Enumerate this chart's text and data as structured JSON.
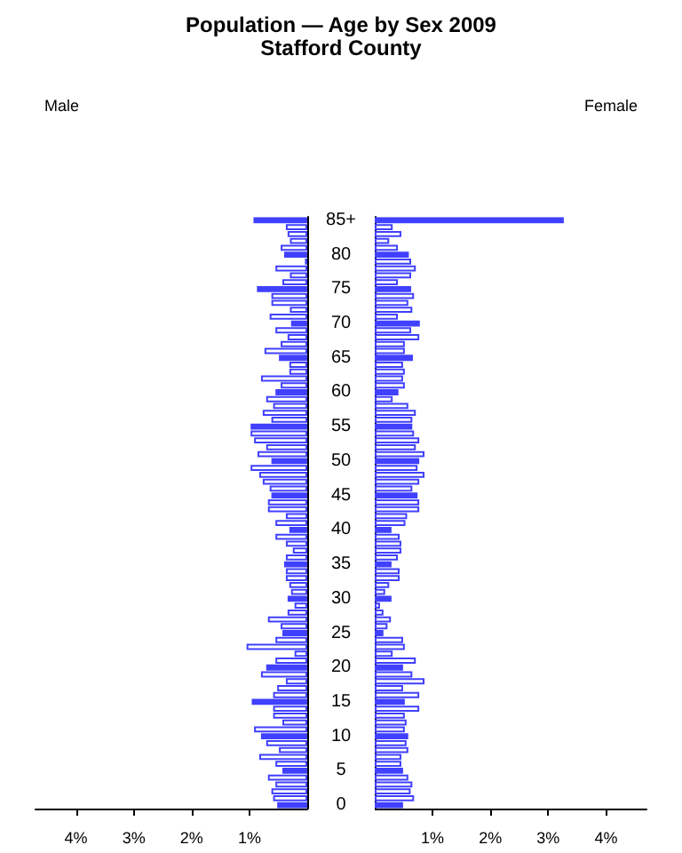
{
  "chart_data": [
    {
      "type": "bar",
      "orientation": "horizontal",
      "title": "Population — Age by Sex 2009",
      "subtitle": "Stafford County",
      "categories": [
        "85+",
        null,
        null,
        null,
        null,
        "80",
        null,
        null,
        null,
        null,
        "75",
        null,
        null,
        null,
        null,
        "70",
        null,
        null,
        null,
        null,
        "65",
        null,
        null,
        null,
        null,
        "60",
        null,
        null,
        null,
        null,
        "55",
        null,
        null,
        null,
        null,
        "50",
        null,
        null,
        null,
        null,
        "45",
        null,
        null,
        null,
        null,
        "40",
        null,
        null,
        null,
        null,
        "35",
        null,
        null,
        null,
        null,
        "30",
        null,
        null,
        null,
        null,
        "25",
        null,
        null,
        null,
        null,
        "20",
        null,
        null,
        null,
        null,
        "15",
        null,
        null,
        null,
        null,
        "10",
        null,
        null,
        null,
        null,
        "5",
        null,
        null,
        null,
        null,
        "0"
      ],
      "series": [
        {
          "name": "Male",
          "color": "#4040ff",
          "values": [
            0.93,
            0.37,
            0.34,
            0.3,
            0.46,
            0.4,
            0.04,
            0.55,
            0.3,
            0.43,
            0.87,
            0.62,
            0.62,
            0.3,
            0.65,
            0.28,
            0.55,
            0.34,
            0.46,
            0.74,
            0.49,
            0.31,
            0.31,
            0.8,
            0.46,
            0.55,
            0.71,
            0.59,
            0.77,
            0.62,
            0.98,
            0.98,
            0.92,
            0.71,
            0.86,
            0.62,
            0.98,
            0.83,
            0.77,
            0.65,
            0.62,
            0.68,
            0.68,
            0.37,
            0.55,
            0.31,
            0.55,
            0.37,
            0.25,
            0.37,
            0.4,
            0.37,
            0.37,
            0.31,
            0.28,
            0.34,
            0.22,
            0.34,
            0.68,
            0.46,
            0.43,
            0.55,
            1.05,
            0.22,
            0.55,
            0.71,
            0.8,
            0.37,
            0.52,
            0.59,
            0.96,
            0.59,
            0.59,
            0.43,
            0.92,
            0.8,
            0.71,
            0.49,
            0.83,
            0.55,
            0.43,
            0.68,
            0.55,
            0.62,
            0.59,
            0.52
          ],
          "colors": [
            "#4040ff",
            "#ffffff",
            "#ffffff",
            "#ffffff",
            "#ffffff",
            "#4040ff",
            "#ffffff",
            "#ffffff",
            "#ffffff",
            "#ffffff",
            "#4040ff",
            "#ffffff",
            "#ffffff",
            "#ffffff",
            "#ffffff",
            "#4040ff",
            "#ffffff",
            "#ffffff",
            "#ffffff",
            "#ffffff",
            "#4040ff",
            "#ffffff",
            "#ffffff",
            "#ffffff",
            "#ffffff",
            "#4040ff",
            "#ffffff",
            "#ffffff",
            "#ffffff",
            "#ffffff",
            "#4040ff",
            "#ffffff",
            "#ffffff",
            "#ffffff",
            "#ffffff",
            "#4040ff",
            "#ffffff",
            "#ffffff",
            "#ffffff",
            "#ffffff",
            "#4040ff",
            "#ffffff",
            "#ffffff",
            "#ffffff",
            "#ffffff",
            "#4040ff",
            "#ffffff",
            "#ffffff",
            "#ffffff",
            "#ffffff",
            "#4040ff",
            "#ffffff",
            "#ffffff",
            "#ffffff",
            "#ffffff",
            "#4040ff",
            "#ffffff",
            "#ffffff",
            "#ffffff",
            "#ffffff",
            "#4040ff",
            "#ffffff",
            "#ffffff",
            "#ffffff",
            "#ffffff",
            "#4040ff",
            "#ffffff",
            "#ffffff",
            "#ffffff",
            "#ffffff",
            "#4040ff",
            "#ffffff",
            "#ffffff",
            "#ffffff",
            "#ffffff",
            "#4040ff",
            "#ffffff",
            "#ffffff",
            "#ffffff",
            "#ffffff",
            "#4040ff",
            "#ffffff",
            "#ffffff",
            "#ffffff",
            "#ffffff",
            "#4040ff"
          ]
        }
      ],
      "xlim": [
        4.7,
        0
      ],
      "xticks": [
        {
          "value": 4,
          "label": "4%"
        },
        {
          "value": 3,
          "label": "3%"
        },
        {
          "value": 2,
          "label": "2%"
        },
        {
          "value": 1,
          "label": "1%"
        }
      ]
    },
    {
      "type": "bar",
      "orientation": "horizontal",
      "tick_labels": "x",
      "categories": [
        null,
        null,
        null,
        null,
        null,
        null,
        null,
        null,
        null,
        null,
        null,
        null,
        null,
        null,
        null,
        null,
        null,
        null,
        null,
        null,
        null,
        null,
        null,
        null,
        null,
        null,
        null,
        null,
        null,
        null,
        null,
        null,
        null,
        null,
        null,
        null,
        null,
        null,
        null,
        null,
        null,
        null,
        null,
        null,
        null,
        null,
        null,
        null,
        null,
        null,
        null,
        null,
        null,
        null,
        null,
        null,
        null,
        null,
        null,
        null,
        null,
        null,
        null,
        null,
        null,
        null,
        null,
        null,
        null,
        null,
        null,
        null,
        null,
        null,
        null,
        null,
        null,
        null,
        null,
        null,
        null,
        null,
        null,
        null,
        null,
        null
      ],
      "series": [
        {
          "name": "Female",
          "color": "#4040ff",
          "values": [
            3.27,
            0.31,
            0.46,
            0.25,
            0.4,
            0.59,
            0.63,
            0.71,
            0.63,
            0.4,
            0.63,
            0.68,
            0.58,
            0.65,
            0.4,
            0.78,
            0.63,
            0.77,
            0.52,
            0.52,
            0.66,
            0.49,
            0.52,
            0.49,
            0.52,
            0.41,
            0.31,
            0.58,
            0.71,
            0.65,
            0.65,
            0.68,
            0.77,
            0.71,
            0.86,
            0.77,
            0.74,
            0.86,
            0.77,
            0.65,
            0.74,
            0.77,
            0.77,
            0.56,
            0.53,
            0.29,
            0.43,
            0.46,
            0.46,
            0.4,
            0.29,
            0.43,
            0.43,
            0.25,
            0.18,
            0.29,
            0.09,
            0.15,
            0.28,
            0.22,
            0.15,
            0.49,
            0.52,
            0.31,
            0.71,
            0.49,
            0.65,
            0.86,
            0.49,
            0.77,
            0.52,
            0.77,
            0.52,
            0.55,
            0.52,
            0.58,
            0.55,
            0.58,
            0.46,
            0.46,
            0.49,
            0.58,
            0.65,
            0.62,
            0.68,
            0.49
          ],
          "colors": [
            "#4040ff",
            "#ffffff",
            "#ffffff",
            "#ffffff",
            "#ffffff",
            "#4040ff",
            "#ffffff",
            "#ffffff",
            "#ffffff",
            "#ffffff",
            "#4040ff",
            "#ffffff",
            "#ffffff",
            "#ffffff",
            "#ffffff",
            "#4040ff",
            "#ffffff",
            "#ffffff",
            "#ffffff",
            "#ffffff",
            "#4040ff",
            "#ffffff",
            "#ffffff",
            "#ffffff",
            "#ffffff",
            "#4040ff",
            "#ffffff",
            "#ffffff",
            "#ffffff",
            "#ffffff",
            "#4040ff",
            "#ffffff",
            "#ffffff",
            "#ffffff",
            "#ffffff",
            "#4040ff",
            "#ffffff",
            "#ffffff",
            "#ffffff",
            "#ffffff",
            "#4040ff",
            "#ffffff",
            "#ffffff",
            "#ffffff",
            "#ffffff",
            "#4040ff",
            "#ffffff",
            "#ffffff",
            "#ffffff",
            "#ffffff",
            "#4040ff",
            "#ffffff",
            "#ffffff",
            "#ffffff",
            "#ffffff",
            "#4040ff",
            "#ffffff",
            "#ffffff",
            "#ffffff",
            "#ffffff",
            "#4040ff",
            "#ffffff",
            "#ffffff",
            "#ffffff",
            "#ffffff",
            "#4040ff",
            "#ffffff",
            "#ffffff",
            "#ffffff",
            "#ffffff",
            "#4040ff",
            "#ffffff",
            "#ffffff",
            "#ffffff",
            "#ffffff",
            "#4040ff",
            "#ffffff",
            "#ffffff",
            "#ffffff",
            "#ffffff",
            "#4040ff",
            "#ffffff",
            "#ffffff",
            "#ffffff",
            "#ffffff",
            "#4040ff"
          ]
        }
      ],
      "xlim": [
        0,
        4.7
      ],
      "xticks": [
        {
          "value": 1,
          "label": "1%"
        },
        {
          "value": 2,
          "label": "2%"
        },
        {
          "value": 3,
          "label": "3%"
        },
        {
          "value": 4,
          "label": "4%"
        }
      ]
    }
  ]
}
